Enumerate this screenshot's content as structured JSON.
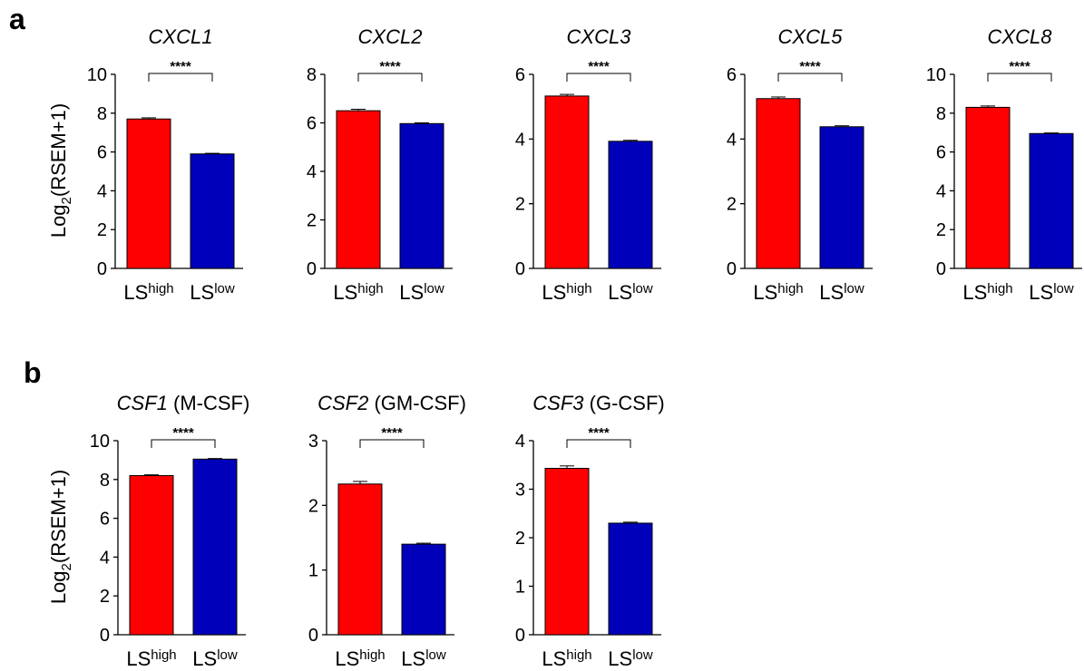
{
  "panels": [
    {
      "letter": "a",
      "ylabel": "Log2(RSEM+1)",
      "ylabel_main": "Log",
      "ylabel_sub": "2",
      "ylabel_rest": "(RSEM+1)"
    },
    {
      "letter": "b",
      "ylabel": "Log2(RSEM+1)",
      "ylabel_main": "Log",
      "ylabel_sub": "2",
      "ylabel_rest": "(RSEM+1)"
    }
  ],
  "colors": {
    "high": "#ff0000",
    "low": "#0000bb",
    "axis": "#000000"
  },
  "chart_data": [
    {
      "type": "bar",
      "panel": "a",
      "title": "CXCL1",
      "title_rest": "",
      "categories": [
        "LShigh",
        "LSlow"
      ],
      "category_main": [
        "LS",
        "LS"
      ],
      "category_sup": [
        "high",
        "low"
      ],
      "values": [
        7.7,
        5.9
      ],
      "errors": [
        0.06,
        0.03
      ],
      "ylim": [
        0,
        10
      ],
      "yticks": [
        0,
        2,
        4,
        6,
        8,
        10
      ],
      "significance": "****"
    },
    {
      "type": "bar",
      "panel": "a",
      "title": "CXCL2",
      "title_rest": "",
      "categories": [
        "LShigh",
        "LSlow"
      ],
      "category_main": [
        "LS",
        "LS"
      ],
      "category_sup": [
        "high",
        "low"
      ],
      "values": [
        6.5,
        5.97
      ],
      "errors": [
        0.06,
        0.03
      ],
      "ylim": [
        0,
        8
      ],
      "yticks": [
        0,
        2,
        4,
        6,
        8
      ],
      "significance": "****"
    },
    {
      "type": "bar",
      "panel": "a",
      "title": "CXCL3",
      "title_rest": "",
      "categories": [
        "LShigh",
        "LSlow"
      ],
      "category_main": [
        "LS",
        "LS"
      ],
      "category_sup": [
        "high",
        "low"
      ],
      "values": [
        5.33,
        3.93
      ],
      "errors": [
        0.05,
        0.03
      ],
      "ylim": [
        0,
        6
      ],
      "yticks": [
        0,
        2,
        4,
        6
      ],
      "significance": "****"
    },
    {
      "type": "bar",
      "panel": "a",
      "title": "CXCL5",
      "title_rest": "",
      "categories": [
        "LShigh",
        "LSlow"
      ],
      "category_main": [
        "LS",
        "LS"
      ],
      "category_sup": [
        "high",
        "low"
      ],
      "values": [
        5.25,
        4.38
      ],
      "errors": [
        0.05,
        0.03
      ],
      "ylim": [
        0,
        6
      ],
      "yticks": [
        0,
        2,
        4,
        6
      ],
      "significance": "****"
    },
    {
      "type": "bar",
      "panel": "a",
      "title": "CXCL8",
      "title_rest": "",
      "categories": [
        "LShigh",
        "LSlow"
      ],
      "category_main": [
        "LS",
        "LS"
      ],
      "category_sup": [
        "high",
        "low"
      ],
      "values": [
        8.3,
        6.95
      ],
      "errors": [
        0.07,
        0.03
      ],
      "ylim": [
        0,
        10
      ],
      "yticks": [
        0,
        2,
        4,
        6,
        8,
        10
      ],
      "significance": "****"
    },
    {
      "type": "bar",
      "panel": "b",
      "title": "CSF1",
      "title_rest": " (M-CSF)",
      "categories": [
        "LShigh",
        "LSlow"
      ],
      "category_main": [
        "LS",
        "LS"
      ],
      "category_sup": [
        "high",
        "low"
      ],
      "values": [
        8.2,
        9.05
      ],
      "errors": [
        0.04,
        0.03
      ],
      "ylim": [
        0,
        10
      ],
      "yticks": [
        0,
        2,
        4,
        6,
        8,
        10
      ],
      "significance": "****"
    },
    {
      "type": "bar",
      "panel": "b",
      "title": "CSF2",
      "title_rest": " (GM-CSF)",
      "categories": [
        "LShigh",
        "LSlow"
      ],
      "category_main": [
        "LS",
        "LS"
      ],
      "category_sup": [
        "high",
        "low"
      ],
      "values": [
        2.33,
        1.4
      ],
      "errors": [
        0.04,
        0.015
      ],
      "ylim": [
        0,
        3
      ],
      "yticks": [
        0,
        1,
        2,
        3
      ],
      "significance": "****"
    },
    {
      "type": "bar",
      "panel": "b",
      "title": "CSF3",
      "title_rest": " (G-CSF)",
      "categories": [
        "LShigh",
        "LSlow"
      ],
      "category_main": [
        "LS",
        "LS"
      ],
      "category_sup": [
        "high",
        "low"
      ],
      "values": [
        3.43,
        2.3
      ],
      "errors": [
        0.05,
        0.02
      ],
      "ylim": [
        0,
        4
      ],
      "yticks": [
        0,
        1,
        2,
        3,
        4
      ],
      "significance": "****"
    }
  ]
}
